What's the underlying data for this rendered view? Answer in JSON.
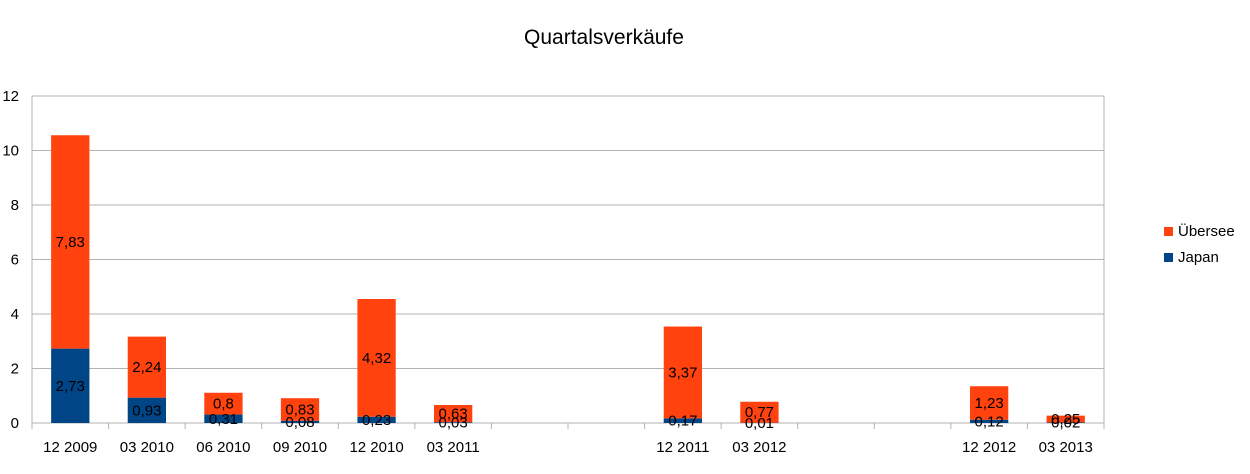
{
  "colors": {
    "ubersee": "#ff420e",
    "japan": "#004586",
    "grid": "#b3b3b3",
    "axis": "#b3b3b3"
  },
  "chart_data": {
    "type": "bar",
    "stacked": true,
    "title": "Quartalsverkäufe",
    "xlabel": "",
    "ylabel": "",
    "ylim": [
      0,
      12
    ],
    "yticks": [
      0,
      2,
      4,
      6,
      8,
      10,
      12
    ],
    "grid": true,
    "legend_position": "right",
    "categories": [
      "12 2009",
      "03 2010",
      "06 2010",
      "09 2010",
      "12 2010",
      "03 2011",
      "",
      "",
      "12 2011",
      "03 2012",
      "",
      "",
      "12 2012",
      "03 2013"
    ],
    "series": [
      {
        "name": "Japan",
        "values": [
          2.73,
          0.93,
          0.31,
          0.08,
          0.23,
          0.03,
          null,
          null,
          0.17,
          0.01,
          null,
          null,
          0.12,
          0.02
        ],
        "labels": [
          "2,73",
          "0,93",
          "0,31",
          "0,08",
          "0,23",
          "0,03",
          "",
          "",
          "0,17",
          "0,01",
          "",
          "",
          "0,12",
          "0,02"
        ]
      },
      {
        "name": "Übersee",
        "values": [
          7.83,
          2.24,
          0.8,
          0.83,
          4.32,
          0.63,
          null,
          null,
          3.37,
          0.77,
          null,
          null,
          1.23,
          0.25
        ],
        "labels": [
          "7,83",
          "2,24",
          "0,8",
          "0,83",
          "4,32",
          "0,63",
          "",
          "",
          "3,37",
          "0,77",
          "",
          "",
          "1,23",
          "0,25"
        ]
      }
    ],
    "legend": [
      "Übersee",
      "Japan"
    ]
  }
}
